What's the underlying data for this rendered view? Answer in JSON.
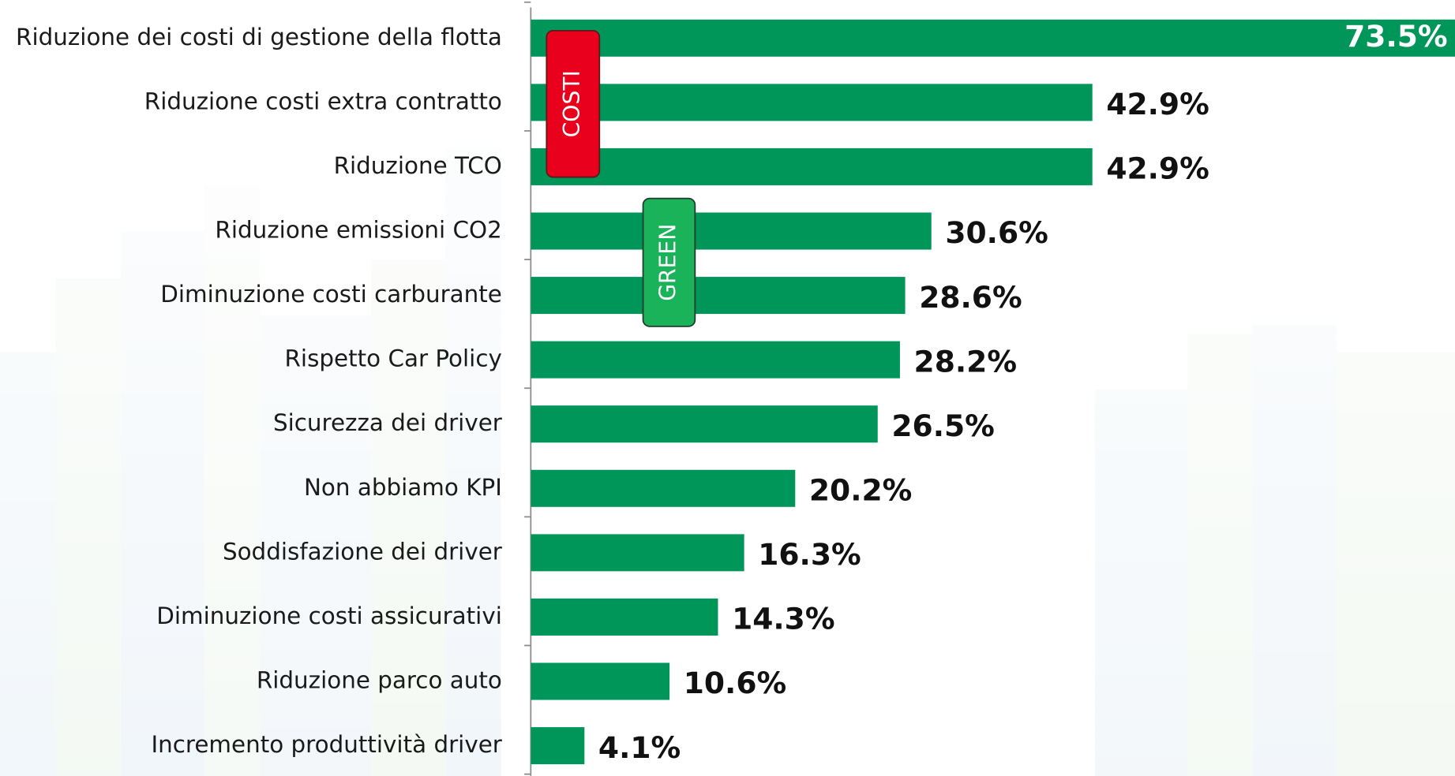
{
  "chart_data": {
    "type": "hbar",
    "categories": [
      "Riduzione dei costi di gestione della flotta",
      "Riduzione costi extra contratto",
      "Riduzione TCO",
      "Riduzione emissioni CO2",
      "Diminuzione costi carburante",
      "Rispetto Car Policy",
      "Sicurezza dei driver",
      "Non abbiamo KPI",
      "Soddisfazione dei driver",
      "Diminuzione costi assicurativi",
      "Riduzione parco auto",
      "Incremento produttività driver"
    ],
    "values": [
      73.5,
      42.9,
      42.9,
      30.6,
      28.6,
      28.2,
      26.5,
      20.2,
      16.3,
      14.3,
      10.6,
      4.1
    ],
    "value_labels": [
      "73.5%",
      "42.9%",
      "42.9%",
      "30.6%",
      "28.6%",
      "28.2%",
      "26.5%",
      "20.2%",
      "16.3%",
      "14.3%",
      "10.6%",
      "4.1%"
    ],
    "color": "#00965a",
    "xlim": [
      0,
      70.6
    ],
    "annotations": [
      {
        "text": "COSTI",
        "color": "#e8001c"
      },
      {
        "text": "GREEN",
        "color": "#1bb35a"
      }
    ]
  }
}
